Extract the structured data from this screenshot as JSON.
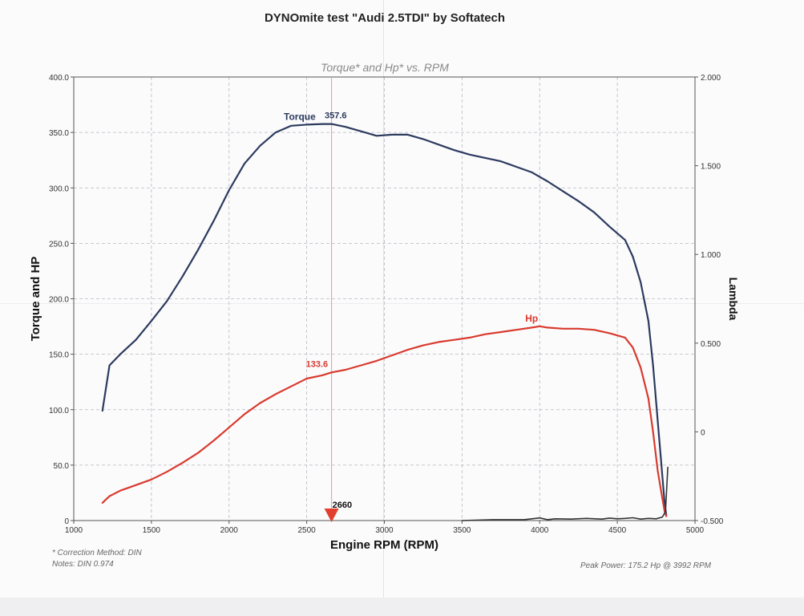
{
  "document": {
    "title": "DYNOmite test \"Audi 2.5TDI\" by Softatech",
    "correction_note": "* Correction Method: DIN",
    "notes_line": "Notes: DIN 0.974",
    "peak_power_note": "Peak Power: 175.2 Hp @ 3992 RPM"
  },
  "chart_data": {
    "type": "line",
    "title": "Torque* and Hp* vs. RPM",
    "xlabel": "Engine RPM (RPM)",
    "ylabel": "Torque and HP",
    "y2label": "Lambda",
    "xlim": [
      1000,
      5000
    ],
    "ylim": [
      0,
      400
    ],
    "y2lim": [
      -0.5,
      2.0
    ],
    "xticks": [
      "1000",
      "1500",
      "2000",
      "2500",
      "3000",
      "3500",
      "4000",
      "4500",
      "5000"
    ],
    "yticks": [
      "0",
      "50.0",
      "100.0",
      "150.0",
      "200.0",
      "250.0",
      "300.0",
      "350.0",
      "400.0"
    ],
    "y2ticks": [
      "-0.500",
      "0",
      "0.500",
      "1.000",
      "1.500",
      "2.000"
    ],
    "grid": true,
    "cursor_rpm": 2660,
    "cursor_label": "2660",
    "series": [
      {
        "name": "Torque",
        "color": "#2c3a5e",
        "label_value": "357.6",
        "x": [
          1185,
          1230,
          1300,
          1400,
          1500,
          1600,
          1700,
          1800,
          1900,
          2000,
          2100,
          2200,
          2300,
          2400,
          2500,
          2600,
          2660,
          2750,
          2850,
          2950,
          3050,
          3150,
          3250,
          3350,
          3450,
          3550,
          3650,
          3750,
          3850,
          3950,
          4050,
          4150,
          4250,
          4350,
          4450,
          4550,
          4600,
          4650,
          4700,
          4730,
          4760,
          4790,
          4805,
          4815
        ],
        "y": [
          99,
          140,
          150,
          163,
          180,
          198,
          220,
          244,
          270,
          298,
          322,
          338,
          350,
          356,
          357,
          357.6,
          357.6,
          355,
          351,
          347,
          348,
          348,
          344,
          339,
          334,
          330,
          327,
          324,
          319,
          314,
          306,
          297,
          288,
          278,
          265,
          253,
          238,
          215,
          180,
          140,
          90,
          40,
          15,
          5
        ]
      },
      {
        "name": "Hp",
        "color": "#d93a2e",
        "label_value": "133.6",
        "x": [
          1185,
          1230,
          1300,
          1400,
          1500,
          1600,
          1700,
          1800,
          1900,
          2000,
          2100,
          2200,
          2300,
          2400,
          2500,
          2600,
          2660,
          2750,
          2850,
          2950,
          3050,
          3150,
          3250,
          3350,
          3450,
          3550,
          3650,
          3750,
          3850,
          3950,
          4000,
          4050,
          4150,
          4250,
          4350,
          4450,
          4550,
          4600,
          4650,
          4700,
          4730,
          4760,
          4790,
          4805,
          4815
        ],
        "y": [
          16,
          22,
          27,
          32,
          37,
          44,
          52,
          61,
          72,
          84,
          96,
          106,
          114,
          121,
          128,
          131,
          133.6,
          136,
          140,
          144,
          149,
          154,
          158,
          161,
          163,
          165,
          168,
          170,
          172,
          174,
          175.2,
          174,
          173,
          173,
          172,
          169,
          165,
          156,
          138,
          110,
          80,
          45,
          20,
          8,
          4
        ]
      },
      {
        "name": "",
        "color": "#333333",
        "axis": "y2",
        "x": [
          3500,
          3700,
          3900,
          3950,
          4000,
          4050,
          4100,
          4200,
          4300,
          4400,
          4450,
          4500,
          4550,
          4600,
          4650,
          4700,
          4750,
          4790,
          4810,
          4825
        ],
        "y": [
          -0.5,
          -0.495,
          -0.495,
          -0.49,
          -0.485,
          -0.495,
          -0.49,
          -0.492,
          -0.488,
          -0.492,
          -0.486,
          -0.49,
          -0.488,
          -0.484,
          -0.492,
          -0.488,
          -0.49,
          -0.48,
          -0.45,
          -0.2
        ]
      }
    ]
  }
}
